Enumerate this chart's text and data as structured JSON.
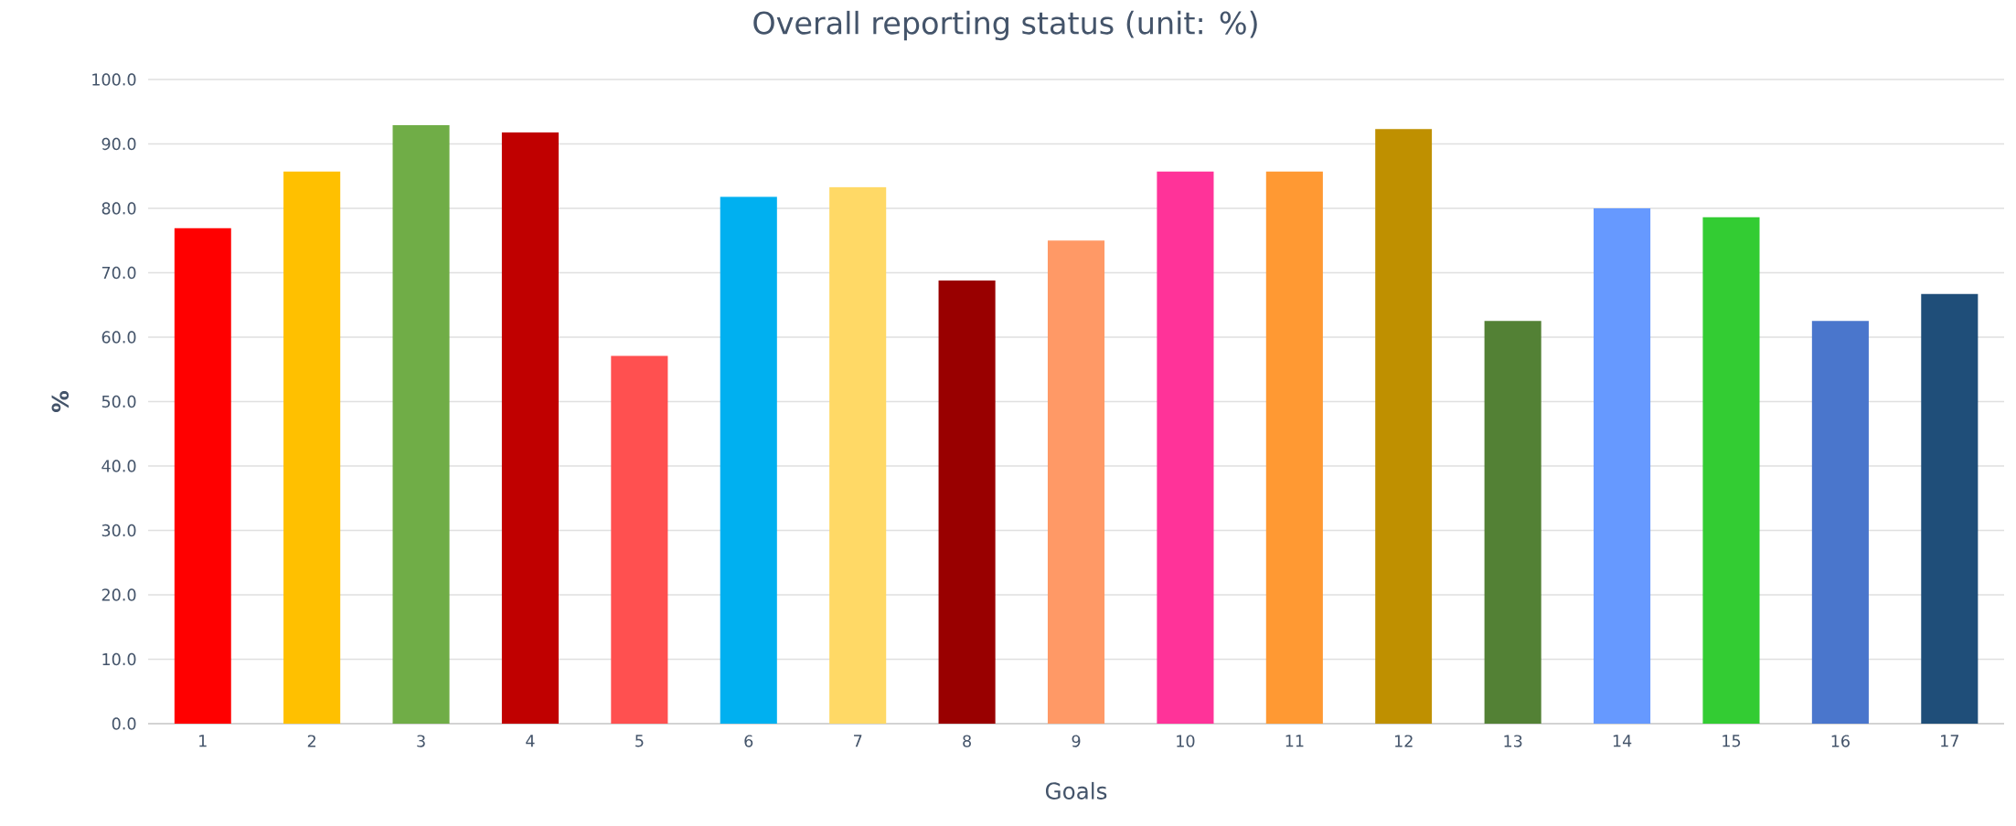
{
  "chart_data": {
    "type": "bar",
    "title": "Overall reporting status (unit: %)",
    "xlabel": "Goals",
    "ylabel": "%",
    "categories": [
      "1",
      "2",
      "3",
      "4",
      "5",
      "6",
      "7",
      "8",
      "9",
      "10",
      "11",
      "12",
      "13",
      "14",
      "15",
      "16",
      "17"
    ],
    "values": [
      76.9,
      85.7,
      92.9,
      91.8,
      57.1,
      81.8,
      83.3,
      68.8,
      75.0,
      85.7,
      85.7,
      92.3,
      62.5,
      80.0,
      78.6,
      62.5,
      66.7
    ],
    "colors": [
      "#ff0000",
      "#ffc000",
      "#70ad47",
      "#c00000",
      "#ff5050",
      "#00b0f0",
      "#ffd966",
      "#990000",
      "#ff9966",
      "#ff3399",
      "#ff9933",
      "#bf9000",
      "#538135",
      "#6699ff",
      "#33cc33",
      "#4a76cc",
      "#1f4e79"
    ],
    "ylim": [
      0,
      100
    ],
    "yticks": [
      {
        "value": 0,
        "label": "0.0"
      },
      {
        "value": 10,
        "label": "10.0"
      },
      {
        "value": 20,
        "label": "20.0"
      },
      {
        "value": 30,
        "label": "30.0"
      },
      {
        "value": 40,
        "label": "40.0"
      },
      {
        "value": 50,
        "label": "50.0"
      },
      {
        "value": 60,
        "label": "60.0"
      },
      {
        "value": 70,
        "label": "70.0"
      },
      {
        "value": 80,
        "label": "80.0"
      },
      {
        "value": 90,
        "label": "90.0"
      },
      {
        "value": 100,
        "label": "100.0"
      }
    ],
    "grid": "y"
  }
}
